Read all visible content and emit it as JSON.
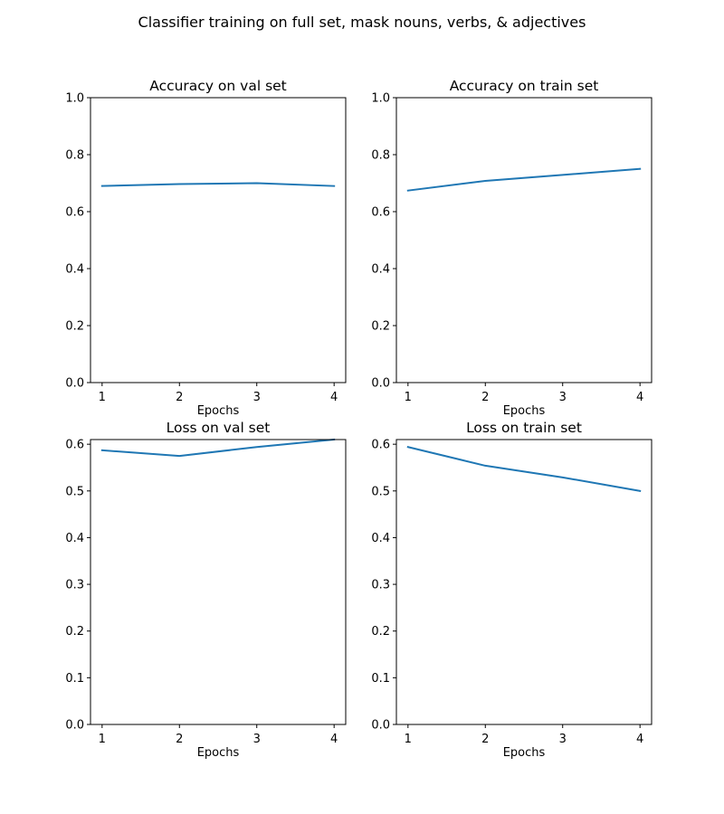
{
  "figure": {
    "suptitle": "Classifier training on full set, mask nouns, verbs, & adjectives",
    "line_color": "#1f77b4"
  },
  "chart_data": [
    {
      "type": "line",
      "title": "Accuracy on val set",
      "xlabel": "Epochs",
      "ylabel": "",
      "x": [
        1,
        2,
        3,
        4
      ],
      "values": [
        0.69,
        0.697,
        0.7,
        0.69
      ],
      "xlim": [
        0.85,
        4.15
      ],
      "ylim": [
        0.0,
        1.0
      ],
      "xticks": [
        1,
        2,
        3,
        4
      ],
      "xtick_labels": [
        "1",
        "2",
        "3",
        "4"
      ],
      "yticks": [
        0.0,
        0.2,
        0.4,
        0.6,
        0.8,
        1.0
      ],
      "ytick_labels": [
        "0.0",
        "0.2",
        "0.4",
        "0.6",
        "0.8",
        "1.0"
      ],
      "grid": false
    },
    {
      "type": "line",
      "title": "Accuracy on train set",
      "xlabel": "Epochs",
      "ylabel": "",
      "x": [
        1,
        2,
        3,
        4
      ],
      "values": [
        0.674,
        0.708,
        0.729,
        0.75
      ],
      "xlim": [
        0.85,
        4.15
      ],
      "ylim": [
        0.0,
        1.0
      ],
      "xticks": [
        1,
        2,
        3,
        4
      ],
      "xtick_labels": [
        "1",
        "2",
        "3",
        "4"
      ],
      "yticks": [
        0.0,
        0.2,
        0.4,
        0.6,
        0.8,
        1.0
      ],
      "ytick_labels": [
        "0.0",
        "0.2",
        "0.4",
        "0.6",
        "0.8",
        "1.0"
      ],
      "grid": false
    },
    {
      "type": "line",
      "title": "Loss on val set",
      "xlabel": "Epochs",
      "ylabel": "",
      "x": [
        1,
        2,
        3,
        4
      ],
      "values": [
        0.587,
        0.575,
        0.594,
        0.61
      ],
      "xlim": [
        0.85,
        4.15
      ],
      "ylim": [
        0.0,
        0.61
      ],
      "xticks": [
        1,
        2,
        3,
        4
      ],
      "xtick_labels": [
        "1",
        "2",
        "3",
        "4"
      ],
      "yticks": [
        0.0,
        0.1,
        0.2,
        0.3,
        0.4,
        0.5,
        0.6
      ],
      "ytick_labels": [
        "0.0",
        "0.1",
        "0.2",
        "0.3",
        "0.4",
        "0.5",
        "0.6"
      ],
      "grid": false
    },
    {
      "type": "line",
      "title": "Loss on train set",
      "xlabel": "Epochs",
      "ylabel": "",
      "x": [
        1,
        2,
        3,
        4
      ],
      "values": [
        0.594,
        0.554,
        0.529,
        0.5
      ],
      "xlim": [
        0.85,
        4.15
      ],
      "ylim": [
        0.0,
        0.61
      ],
      "xticks": [
        1,
        2,
        3,
        4
      ],
      "xtick_labels": [
        "1",
        "2",
        "3",
        "4"
      ],
      "yticks": [
        0.0,
        0.1,
        0.2,
        0.3,
        0.4,
        0.5,
        0.6
      ],
      "ytick_labels": [
        "0.0",
        "0.1",
        "0.2",
        "0.3",
        "0.4",
        "0.5",
        "0.6"
      ],
      "grid": false
    }
  ]
}
